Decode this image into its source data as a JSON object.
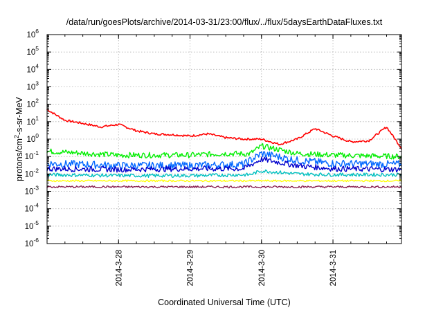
{
  "chart_data": {
    "type": "line",
    "title": "/data/run/goesPlots/archive/2014-03-31/23:00/flux/../flux/5daysEarthDataFluxes.txt",
    "xlabel": "Coordinated Universal Time (UTC)",
    "ylabel_base": "protons/cm",
    "ylabel_sup": "2",
    "ylabel_rest": "-s-sr-MeV",
    "y_scale": "log",
    "ylim": [
      1e-06,
      1000000.0
    ],
    "xlim": [
      "2014-03-27 00:00",
      "2014-03-31 23:00"
    ],
    "x_ticks": [
      {
        "label": "2014-3-28",
        "x": "2014-03-28 00:00"
      },
      {
        "label": "2014-3-29",
        "x": "2014-03-29 00:00"
      },
      {
        "label": "2014-3-30",
        "x": "2014-03-30 00:00"
      },
      {
        "label": "2014-3-31",
        "x": "2014-03-31 00:00"
      }
    ],
    "y_ticks": [
      {
        "base": "10",
        "exp": "-6",
        "value": 1e-06
      },
      {
        "base": "10",
        "exp": "-5",
        "value": 1e-05
      },
      {
        "base": "10",
        "exp": "-4",
        "value": 0.0001
      },
      {
        "base": "10",
        "exp": "-3",
        "value": 0.001
      },
      {
        "base": "10",
        "exp": "-2",
        "value": 0.01
      },
      {
        "base": "10",
        "exp": "-1",
        "value": 0.1
      },
      {
        "base": "10",
        "exp": "0",
        "value": 1.0
      },
      {
        "base": "10",
        "exp": "1",
        "value": 10.0
      },
      {
        "base": "10",
        "exp": "2",
        "value": 100.0
      },
      {
        "base": "10",
        "exp": "3",
        "value": 1000.0
      },
      {
        "base": "10",
        "exp": "4",
        "value": 10000.0
      },
      {
        "base": "10",
        "exp": "5",
        "value": 100000.0
      },
      {
        "base": "10",
        "exp": "6",
        "value": 1000000.0
      }
    ],
    "grid": true,
    "legend": "none",
    "series": [
      {
        "color": "#ff0000",
        "x": [
          "2014-03-27 00:00",
          "2014-03-27 06:00",
          "2014-03-27 12:00",
          "2014-03-27 18:00",
          "2014-03-28 00:00",
          "2014-03-28 06:00",
          "2014-03-28 12:00",
          "2014-03-28 18:00",
          "2014-03-29 00:00",
          "2014-03-29 06:00",
          "2014-03-29 12:00",
          "2014-03-29 18:00",
          "2014-03-30 00:00",
          "2014-03-30 06:00",
          "2014-03-30 12:00",
          "2014-03-30 18:00",
          "2014-03-31 00:00",
          "2014-03-31 06:00",
          "2014-03-31 12:00",
          "2014-03-31 18:00",
          "2014-03-31 23:00"
        ],
        "values": [
          50,
          12,
          8,
          5,
          7,
          3,
          2,
          1.8,
          1.5,
          2,
          1.2,
          1,
          1,
          0.5,
          1,
          4,
          1.5,
          0.7,
          0.8,
          5,
          0.3
        ]
      },
      {
        "color": "#00ee00",
        "x": [
          "2014-03-27 00:00",
          "2014-03-28 00:00",
          "2014-03-29 00:00",
          "2014-03-29 12:00",
          "2014-03-29 20:00",
          "2014-03-30 00:00",
          "2014-03-30 12:00",
          "2014-03-31 00:00",
          "2014-03-31 23:00"
        ],
        "values": [
          0.2,
          0.12,
          0.12,
          0.15,
          0.14,
          0.4,
          0.15,
          0.12,
          0.1
        ]
      },
      {
        "color": "#0066ff",
        "x": [
          "2014-03-27 00:00",
          "2014-03-28 00:00",
          "2014-03-29 00:00",
          "2014-03-29 18:00",
          "2014-03-30 00:00",
          "2014-03-30 12:00",
          "2014-03-31 00:00",
          "2014-03-31 23:00"
        ],
        "values": [
          0.04,
          0.03,
          0.03,
          0.035,
          0.15,
          0.06,
          0.04,
          0.035
        ]
      },
      {
        "color": "#0000cc",
        "x": [
          "2014-03-27 00:00",
          "2014-03-28 00:00",
          "2014-03-29 00:00",
          "2014-03-29 18:00",
          "2014-03-30 00:00",
          "2014-03-30 12:00",
          "2014-03-31 00:00",
          "2014-03-31 23:00"
        ],
        "values": [
          0.02,
          0.018,
          0.02,
          0.02,
          0.07,
          0.03,
          0.02,
          0.018
        ]
      },
      {
        "color": "#00c0c0",
        "x": [
          "2014-03-27 00:00",
          "2014-03-28 00:00",
          "2014-03-29 00:00",
          "2014-03-29 20:00",
          "2014-03-30 00:00",
          "2014-03-30 12:00",
          "2014-03-31 00:00",
          "2014-03-31 23:00"
        ],
        "values": [
          0.009,
          0.008,
          0.008,
          0.009,
          0.015,
          0.01,
          0.009,
          0.009
        ]
      },
      {
        "color": "#ffff00",
        "x": [
          "2014-03-27 00:00",
          "2014-03-28 00:00",
          "2014-03-29 00:00",
          "2014-03-30 00:00",
          "2014-03-31 00:00",
          "2014-03-31 23:00"
        ],
        "values": [
          0.004,
          0.004,
          0.004,
          0.004,
          0.004,
          0.004
        ]
      },
      {
        "color": "#8b2252",
        "x": [
          "2014-03-27 00:00",
          "2014-03-28 00:00",
          "2014-03-29 00:00",
          "2014-03-30 00:00",
          "2014-03-31 00:00",
          "2014-03-31 23:00"
        ],
        "values": [
          0.0018,
          0.0018,
          0.0018,
          0.0018,
          0.0018,
          0.0018
        ]
      }
    ]
  }
}
